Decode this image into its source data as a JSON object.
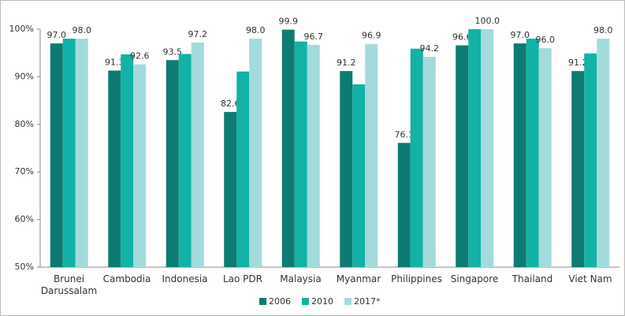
{
  "chart_data": {
    "type": "bar",
    "categories": [
      "Brunei Darussalam",
      "Cambodia",
      "Indonesia",
      "Lao PDR",
      "Malaysia",
      "Myanmar",
      "Philippines",
      "Singapore",
      "Thailand",
      "Viet Nam"
    ],
    "series": [
      {
        "name": "2006",
        "color": "#0e7b72",
        "values": [
          97.0,
          91.3,
          93.5,
          82.6,
          99.9,
          91.2,
          76.1,
          96.6,
          97.0,
          91.2
        ],
        "value_labels": [
          "97.0",
          "91.3",
          "93.5",
          "82.6",
          "99.9",
          "91.2",
          "76.1",
          "96.6",
          "97.0",
          "91.2"
        ]
      },
      {
        "name": "2010",
        "color": "#13b1a6",
        "values": [
          98.0,
          94.7,
          94.8,
          91.1,
          97.4,
          88.4,
          95.9,
          100.0,
          98.0,
          94.9
        ]
      },
      {
        "name": "2017*",
        "color": "#a3dbdc",
        "values": [
          98.0,
          92.6,
          97.2,
          98.0,
          96.7,
          96.9,
          94.2,
          100.0,
          96.0,
          98.0
        ],
        "value_labels": [
          "98.0",
          "92.6",
          "97.2",
          "98.0",
          "96.7",
          "96.9",
          "94.2",
          "100.0",
          "96.0",
          "98.0"
        ]
      }
    ],
    "ylim": [
      50,
      100
    ],
    "yticks": [
      {
        "value": 50,
        "label": "50%"
      },
      {
        "value": 60,
        "label": "60%"
      },
      {
        "value": 70,
        "label": "70%"
      },
      {
        "value": 80,
        "label": "80%"
      },
      {
        "value": 90,
        "label": "90%"
      },
      {
        "value": 100,
        "label": "100%"
      }
    ],
    "grid": false,
    "legend": "bottom"
  }
}
